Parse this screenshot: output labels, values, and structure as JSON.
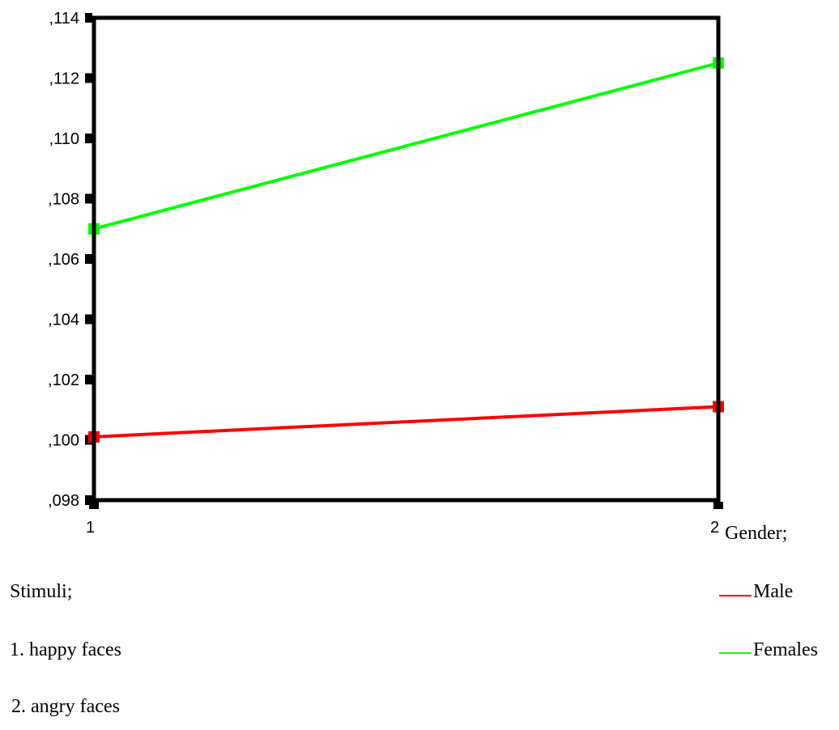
{
  "chart_data": {
    "type": "line",
    "x": [
      "1",
      "2"
    ],
    "xlabel": "Gender;",
    "ylim": [
      0.098,
      0.114
    ],
    "yticks": [
      ",098",
      ",100",
      ",102",
      ",104",
      ",106",
      ",108",
      ",110",
      ",112",
      ",114"
    ],
    "series": [
      {
        "name": "Male",
        "color": "#ff0000",
        "values": [
          0.1001,
          0.1011
        ]
      },
      {
        "name": "Females",
        "color": "#00ff00",
        "values": [
          0.107,
          0.1125
        ]
      }
    ],
    "legend_title": "",
    "notes": {
      "stimuli_title": "Stimuli;",
      "stimuli_items": [
        "1. happy faces",
        "2. angry faces"
      ]
    }
  }
}
